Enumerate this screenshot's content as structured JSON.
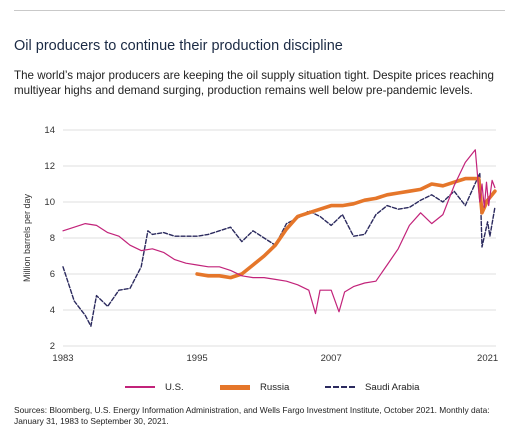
{
  "header": {
    "title": "Oil producers to continue their production discipline",
    "subtitle": "The world’s major producers are keeping the oil supply situation tight. Despite prices reaching multiyear highs and demand surging, production remains well below pre-pandemic levels."
  },
  "footer": {
    "sources": "Sources: Bloomberg, U.S. Energy Information Administration, and Wells Fargo Investment Institute, October 2021. Monthly data: January 31, 1983 to September 30, 2021."
  },
  "chart_data": {
    "type": "line",
    "title": "",
    "xlabel": "",
    "ylabel": "Million barrels per day",
    "xlim": [
      1983.0,
      2021.75
    ],
    "ylim": [
      2,
      14
    ],
    "yticks": [
      2,
      4,
      6,
      8,
      10,
      12,
      14
    ],
    "xticks": [
      "1983",
      "1995",
      "2007",
      "2021"
    ],
    "xtick_values": [
      1983,
      1995,
      2007,
      2021
    ],
    "grid": "horizontal",
    "legend_position": "bottom",
    "series": [
      {
        "name": "U.S.",
        "color": "#c2237a",
        "style": "solid",
        "points": [
          [
            1983.0,
            8.4
          ],
          [
            1984.0,
            8.6
          ],
          [
            1985.0,
            8.8
          ],
          [
            1986.0,
            8.7
          ],
          [
            1987.0,
            8.3
          ],
          [
            1988.0,
            8.1
          ],
          [
            1989.0,
            7.6
          ],
          [
            1990.0,
            7.3
          ],
          [
            1991.0,
            7.4
          ],
          [
            1992.0,
            7.2
          ],
          [
            1993.0,
            6.8
          ],
          [
            1994.0,
            6.6
          ],
          [
            1995.0,
            6.5
          ],
          [
            1996.0,
            6.4
          ],
          [
            1997.0,
            6.4
          ],
          [
            1998.0,
            6.2
          ],
          [
            1999.0,
            5.9
          ],
          [
            2000.0,
            5.8
          ],
          [
            2001.0,
            5.8
          ],
          [
            2002.0,
            5.7
          ],
          [
            2003.0,
            5.6
          ],
          [
            2004.0,
            5.4
          ],
          [
            2005.0,
            5.1
          ],
          [
            2005.6,
            3.8
          ],
          [
            2006.0,
            5.1
          ],
          [
            2007.0,
            5.1
          ],
          [
            2007.7,
            3.9
          ],
          [
            2008.2,
            5.0
          ],
          [
            2009.0,
            5.3
          ],
          [
            2010.0,
            5.5
          ],
          [
            2011.0,
            5.6
          ],
          [
            2012.0,
            6.5
          ],
          [
            2013.0,
            7.4
          ],
          [
            2014.0,
            8.7
          ],
          [
            2015.0,
            9.4
          ],
          [
            2016.0,
            8.8
          ],
          [
            2017.0,
            9.3
          ],
          [
            2018.0,
            10.9
          ],
          [
            2019.0,
            12.2
          ],
          [
            2019.9,
            12.9
          ],
          [
            2020.3,
            10.0
          ],
          [
            2020.5,
            11.0
          ],
          [
            2020.7,
            9.7
          ],
          [
            2020.9,
            11.1
          ],
          [
            2021.1,
            9.8
          ],
          [
            2021.4,
            11.2
          ],
          [
            2021.65,
            10.8
          ]
        ]
      },
      {
        "name": "Russia",
        "color": "#e5762a",
        "style": "solid",
        "points": [
          [
            1995.0,
            6.0
          ],
          [
            1996.0,
            5.9
          ],
          [
            1997.0,
            5.9
          ],
          [
            1998.0,
            5.8
          ],
          [
            1999.0,
            6.0
          ],
          [
            2000.0,
            6.5
          ],
          [
            2001.0,
            7.0
          ],
          [
            2002.0,
            7.6
          ],
          [
            2003.0,
            8.5
          ],
          [
            2004.0,
            9.2
          ],
          [
            2005.0,
            9.4
          ],
          [
            2006.0,
            9.6
          ],
          [
            2007.0,
            9.8
          ],
          [
            2008.0,
            9.8
          ],
          [
            2009.0,
            9.9
          ],
          [
            2010.0,
            10.1
          ],
          [
            2011.0,
            10.2
          ],
          [
            2012.0,
            10.4
          ],
          [
            2013.0,
            10.5
          ],
          [
            2014.0,
            10.6
          ],
          [
            2015.0,
            10.7
          ],
          [
            2016.0,
            11.0
          ],
          [
            2017.0,
            10.9
          ],
          [
            2018.0,
            11.1
          ],
          [
            2019.0,
            11.3
          ],
          [
            2020.2,
            11.3
          ],
          [
            2020.5,
            9.4
          ],
          [
            2021.0,
            10.1
          ],
          [
            2021.65,
            10.6
          ]
        ]
      },
      {
        "name": "Saudi Arabia",
        "color": "#2b2a5e",
        "style": "dashed",
        "points": [
          [
            1983.0,
            6.4
          ],
          [
            1984.0,
            4.5
          ],
          [
            1985.0,
            3.7
          ],
          [
            1985.5,
            3.1
          ],
          [
            1986.0,
            4.8
          ],
          [
            1987.0,
            4.2
          ],
          [
            1988.0,
            5.1
          ],
          [
            1989.0,
            5.2
          ],
          [
            1990.0,
            6.4
          ],
          [
            1990.6,
            8.4
          ],
          [
            1991.0,
            8.2
          ],
          [
            1992.0,
            8.3
          ],
          [
            1993.0,
            8.1
          ],
          [
            1994.0,
            8.1
          ],
          [
            1995.0,
            8.1
          ],
          [
            1996.0,
            8.2
          ],
          [
            1997.0,
            8.4
          ],
          [
            1998.0,
            8.6
          ],
          [
            1999.0,
            7.8
          ],
          [
            2000.0,
            8.4
          ],
          [
            2001.0,
            8.0
          ],
          [
            2002.0,
            7.6
          ],
          [
            2003.0,
            8.8
          ],
          [
            2004.0,
            9.1
          ],
          [
            2005.0,
            9.5
          ],
          [
            2006.0,
            9.2
          ],
          [
            2007.0,
            8.7
          ],
          [
            2008.0,
            9.3
          ],
          [
            2009.0,
            8.1
          ],
          [
            2010.0,
            8.2
          ],
          [
            2011.0,
            9.3
          ],
          [
            2012.0,
            9.8
          ],
          [
            2013.0,
            9.6
          ],
          [
            2014.0,
            9.7
          ],
          [
            2015.0,
            10.1
          ],
          [
            2016.0,
            10.4
          ],
          [
            2017.0,
            10.0
          ],
          [
            2018.0,
            10.6
          ],
          [
            2019.0,
            9.8
          ],
          [
            2020.3,
            11.6
          ],
          [
            2020.5,
            7.5
          ],
          [
            2021.0,
            8.9
          ],
          [
            2021.2,
            8.1
          ],
          [
            2021.65,
            9.7
          ]
        ]
      }
    ]
  }
}
